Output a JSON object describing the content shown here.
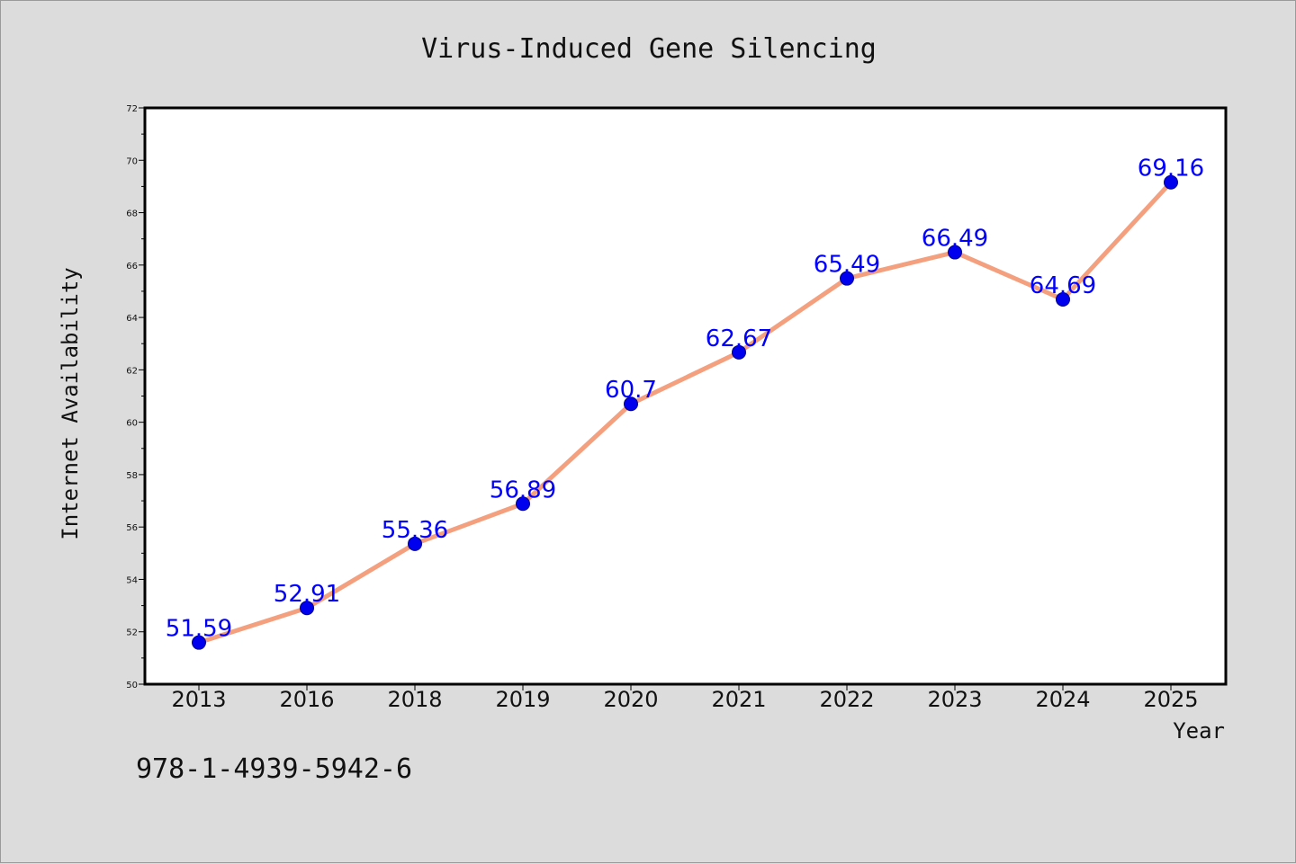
{
  "chart_data": {
    "type": "line",
    "title": "Virus-Induced Gene Silencing",
    "xlabel": "Year",
    "ylabel": "Internet Availability",
    "categories": [
      "2013",
      "2016",
      "2018",
      "2019",
      "2020",
      "2021",
      "2022",
      "2023",
      "2024",
      "2025"
    ],
    "values": [
      51.59,
      52.91,
      55.36,
      56.89,
      60.7,
      62.67,
      65.49,
      66.49,
      64.69,
      69.16
    ],
    "value_labels": [
      "51.59",
      "52.91",
      "55.36",
      "56.89",
      "60.7",
      "62.67",
      "65.49",
      "66.49",
      "64.69",
      "69.16"
    ],
    "ylim": [
      50,
      72
    ],
    "yticks": [
      50,
      52,
      54,
      56,
      58,
      60,
      62,
      64,
      66,
      68,
      70,
      72
    ],
    "grid": false,
    "legend": "none",
    "colors": {
      "line": "#f4a07f",
      "marker": "#0000ee",
      "marker_edge": "#00008b",
      "data_label": "#0000ff",
      "plot_background": "#ffffff",
      "figure_background": "#dcdcdc"
    }
  },
  "footnote": "978-1-4939-5942-6"
}
